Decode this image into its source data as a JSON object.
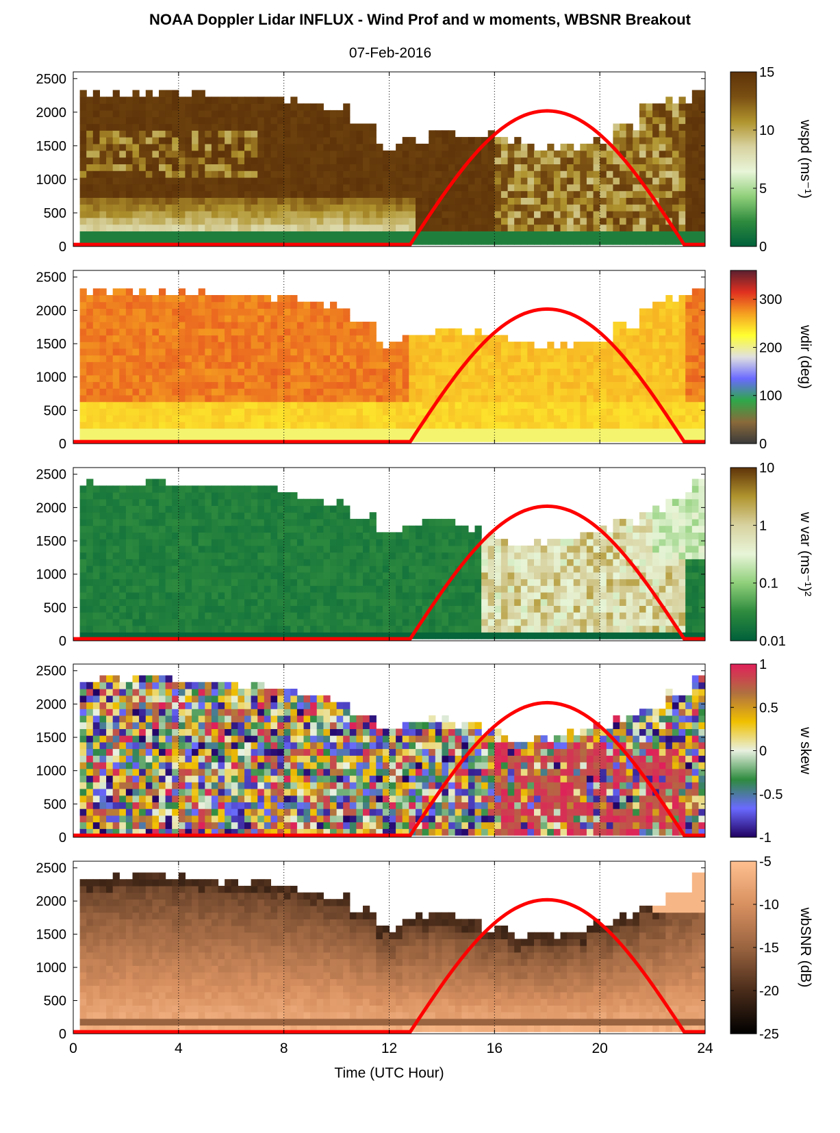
{
  "figure": {
    "title": "NOAA Doppler Lidar INFLUX - Wind Prof and w moments, WBSNR Breakout",
    "date": "07-Feb-2016",
    "xlabel": "Time (UTC Hour)"
  },
  "colors": {
    "sun_curve": "#ff0000",
    "grid": "#000000"
  },
  "chart_data": [
    {
      "type": "heatmap",
      "variable": "wspd",
      "ylabel": "wspd (ms⁻¹)",
      "x_ticks": [
        "0",
        "4",
        "8",
        "12",
        "16",
        "20",
        "24"
      ],
      "xlim": [
        0,
        24
      ],
      "y_ticks": [
        "0",
        "500",
        "1000",
        "1500",
        "2000",
        "2500"
      ],
      "ylim": [
        0,
        2600
      ],
      "colorbar": {
        "ticks": [
          "0",
          "5",
          "10",
          "15"
        ],
        "range": [
          0,
          15
        ],
        "stops": [
          "#00603a",
          "#2e8b3e",
          "#8fcf7a",
          "#e8f5d8",
          "#d8d2a0",
          "#b0942e",
          "#7a4f12",
          "#5e3309"
        ]
      },
      "top_height_m": [
        2250,
        2250,
        2230,
        2230,
        2240,
        2220,
        2200,
        2180,
        2150,
        2100,
        2000,
        1750,
        1450,
        1550,
        1650,
        1600,
        1600,
        1500,
        1400,
        1450,
        1500,
        1750,
        2050,
        2150,
        2300
      ],
      "fill_description_values": {
        "lower_layer_m": 500,
        "lower_layer_wspd": 5,
        "upper_wspd": 15
      }
    },
    {
      "type": "heatmap",
      "variable": "wdir",
      "ylabel": "wdir (deg)",
      "x_ticks": [
        "0",
        "4",
        "8",
        "12",
        "16",
        "20",
        "24"
      ],
      "xlim": [
        0,
        24
      ],
      "y_ticks": [
        "0",
        "500",
        "1000",
        "1500",
        "2000",
        "2500"
      ],
      "ylim": [
        0,
        2600
      ],
      "colorbar": {
        "ticks": [
          "0",
          "100",
          "200",
          "300"
        ],
        "range": [
          0,
          360
        ],
        "stops": [
          "#3a3a3a",
          "#8a6a3a",
          "#2ea84a",
          "#6a6aff",
          "#e0e0e0",
          "#ffff30",
          "#f5a020",
          "#e03020",
          "#5a2030"
        ]
      },
      "top_height_m": [
        2250,
        2250,
        2230,
        2230,
        2240,
        2220,
        2200,
        2180,
        2150,
        2100,
        2000,
        1750,
        1450,
        1550,
        1650,
        1600,
        1600,
        1500,
        1400,
        1450,
        1500,
        1750,
        2050,
        2150,
        2300
      ]
    },
    {
      "type": "heatmap",
      "variable": "w var",
      "ylabel": "w var (ms⁻¹)²",
      "x_ticks": [
        "0",
        "4",
        "8",
        "12",
        "16",
        "20",
        "24"
      ],
      "xlim": [
        0,
        24
      ],
      "y_ticks": [
        "0",
        "500",
        "1000",
        "1500",
        "2000",
        "2500"
      ],
      "ylim": [
        0,
        2600
      ],
      "colorbar": {
        "ticks": [
          "0.01",
          "0.1",
          "1",
          "10"
        ],
        "range": [
          0.01,
          10
        ],
        "scale": "log",
        "stops": [
          "#00603a",
          "#2e8b3e",
          "#8fcf7a",
          "#e8f5d8",
          "#d8d2a0",
          "#b0942e",
          "#5e3309"
        ]
      },
      "top_height_m": [
        2300,
        2300,
        2320,
        2350,
        2300,
        2280,
        2260,
        2240,
        2200,
        2100,
        2000,
        1800,
        1550,
        1700,
        1750,
        1650,
        1550,
        1400,
        1450,
        1500,
        1600,
        1750,
        1900,
        2100,
        2350
      ]
    },
    {
      "type": "heatmap",
      "variable": "w skew",
      "ylabel": "w skew",
      "x_ticks": [
        "0",
        "4",
        "8",
        "12",
        "16",
        "20",
        "24"
      ],
      "xlim": [
        0,
        24
      ],
      "y_ticks": [
        "0",
        "500",
        "1000",
        "1500",
        "2000",
        "2500"
      ],
      "ylim": [
        0,
        2600
      ],
      "colorbar": {
        "ticks": [
          "-1",
          "-0.5",
          "0",
          "0.5",
          "1"
        ],
        "range": [
          -1,
          1
        ],
        "stops": [
          "#200060",
          "#6a6aff",
          "#2e8b3e",
          "#e8f0e0",
          "#f0c000",
          "#b07040",
          "#e0205a"
        ]
      },
      "top_height_m": [
        2300,
        2300,
        2320,
        2350,
        2300,
        2280,
        2260,
        2240,
        2200,
        2100,
        2000,
        1800,
        1550,
        1700,
        1750,
        1650,
        1550,
        1400,
        1450,
        1500,
        1600,
        1750,
        1900,
        2100,
        2350
      ]
    },
    {
      "type": "heatmap",
      "variable": "wbSNR",
      "ylabel": "wbSNR (dB)",
      "x_ticks": [
        "0",
        "4",
        "8",
        "12",
        "16",
        "20",
        "24"
      ],
      "xlim": [
        0,
        24
      ],
      "y_ticks": [
        "0",
        "500",
        "1000",
        "1500",
        "2000",
        "2500"
      ],
      "ylim": [
        0,
        2600
      ],
      "colorbar": {
        "ticks": [
          "-25",
          "-20",
          "-15",
          "-10",
          "-5"
        ],
        "range": [
          -25,
          -5
        ],
        "stops": [
          "#000000",
          "#4a2c1a",
          "#9a6440",
          "#d89060",
          "#ffc090"
        ]
      },
      "top_height_m": [
        2300,
        2300,
        2320,
        2350,
        2300,
        2280,
        2260,
        2240,
        2200,
        2100,
        2000,
        1800,
        1550,
        1700,
        1750,
        1650,
        1550,
        1400,
        1450,
        1500,
        1600,
        1750,
        1900,
        2100,
        2350
      ]
    }
  ],
  "sun_curve": {
    "description_values": {
      "rise_hour": 12.8,
      "peak_hour": 18.0,
      "set_hour": 23.2,
      "peak_height_m": 2020,
      "baseline_m": 30
    }
  }
}
